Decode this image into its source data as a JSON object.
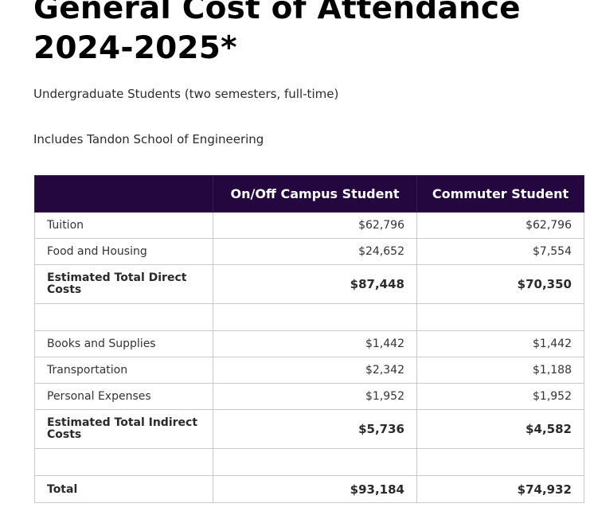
{
  "title_line1": "General Cost of Attendance",
  "title_line2": "2024-2025*",
  "subtitle": "Undergraduate Students (two semesters, full-time)",
  "note": "Includes Tandon School of Engineering",
  "table": {
    "headers": [
      "",
      "On/Off Campus Student",
      "Commuter Student"
    ],
    "rows": [
      {
        "label": "Tuition",
        "on_off": "$62,796",
        "commuter": "$62,796"
      },
      {
        "label": "Food and Housing",
        "on_off": "$24,652",
        "commuter": "$7,554"
      },
      {
        "label": "Estimated Total Direct Costs",
        "on_off": "$87,448",
        "commuter": "$70,350"
      },
      {
        "label": "",
        "on_off": "",
        "commuter": ""
      },
      {
        "label": "Books and Supplies",
        "on_off": "$1,442",
        "commuter": "$1,442"
      },
      {
        "label": "Transportation",
        "on_off": "$2,342",
        "commuter": "$1,188"
      },
      {
        "label": "Personal Expenses",
        "on_off": "$1,952",
        "commuter": "$1,952"
      },
      {
        "label": "Estimated Total Indirect Costs",
        "on_off": "$5,736",
        "commuter": "$4,582"
      },
      {
        "label": "",
        "on_off": "",
        "commuter": ""
      },
      {
        "label": "Total",
        "on_off": "$93,184",
        "commuter": "$74,932"
      }
    ]
  }
}
